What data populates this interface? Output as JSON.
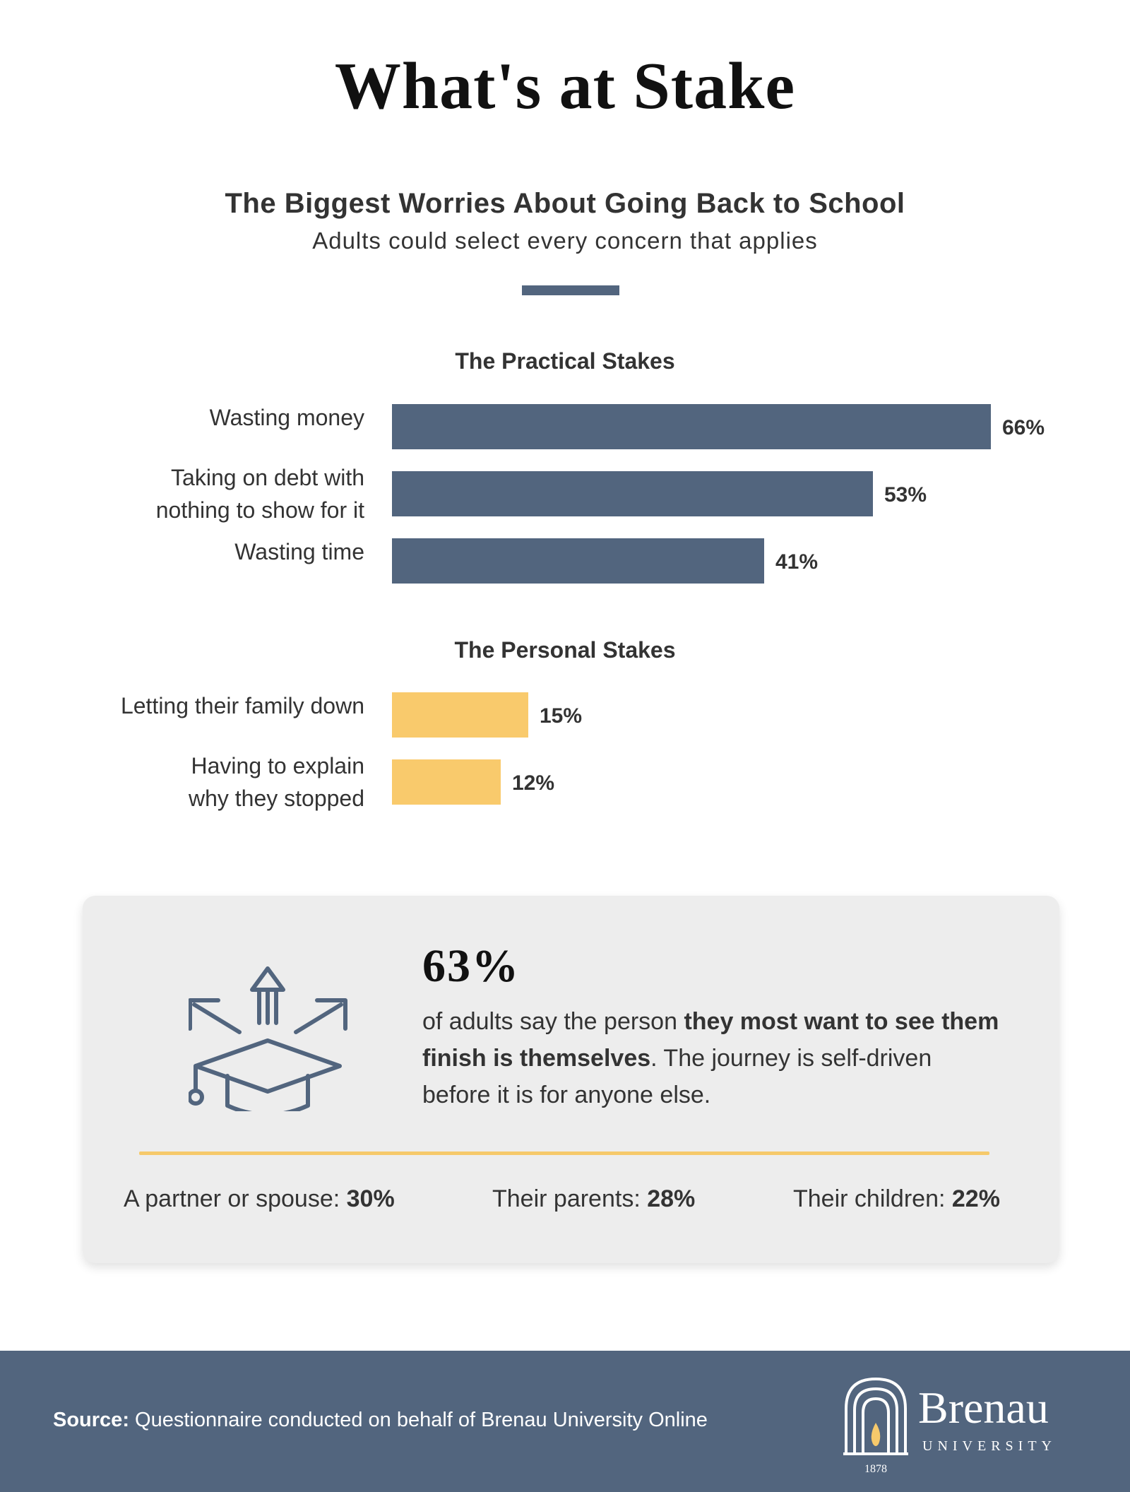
{
  "title": "What's at Stake",
  "subtitle": "The Biggest Worries About Going Back to School",
  "subtitle2": "Adults could select every concern that applies",
  "colors": {
    "practical": "#52657e",
    "personal": "#f9ca6c",
    "accent_rule": "#f6c96b",
    "footer": "#52657e"
  },
  "chart_data": {
    "type": "bar",
    "orientation": "horizontal",
    "title": "The Biggest Worries About Going Back to School",
    "subtitle": "Adults could select every concern that applies",
    "value_suffix": "%",
    "xlim": [
      0,
      66
    ],
    "groups": [
      {
        "title": "The Practical Stakes",
        "color": "#52657e",
        "items": [
          {
            "label": [
              "Wasting money"
            ],
            "value": 66
          },
          {
            "label": [
              "Taking on debt with",
              "nothing to show for it"
            ],
            "value": 53
          },
          {
            "label": [
              "Wasting time"
            ],
            "value": 41
          }
        ]
      },
      {
        "title": "The Personal Stakes",
        "color": "#f9ca6c",
        "items": [
          {
            "label": [
              "Letting their family down"
            ],
            "value": 15
          },
          {
            "label": [
              "Having to explain",
              "why they stopped"
            ],
            "value": 12
          }
        ]
      }
    ]
  },
  "card": {
    "icon": "graduation-cap-arrows-icon",
    "big_stat": "63%",
    "text_pre": "of adults say the person ",
    "text_bold": "they most want to see them finish is themselves",
    "text_post": ". The journey is self-driven before it is for anyone else.",
    "stats": [
      {
        "label": "A partner or spouse: ",
        "value": "30%"
      },
      {
        "label": "Their parents: ",
        "value": "28%"
      },
      {
        "label": "Their children: ",
        "value": "22%"
      }
    ]
  },
  "footer": {
    "source_label": "Source:",
    "source_text": " Questionnaire conducted on behalf of Brenau University Online",
    "logo_name": "Brenau",
    "logo_sub": "UNIVERSITY",
    "logo_year": "1878",
    "logo_icon": "arch-flame-icon"
  }
}
